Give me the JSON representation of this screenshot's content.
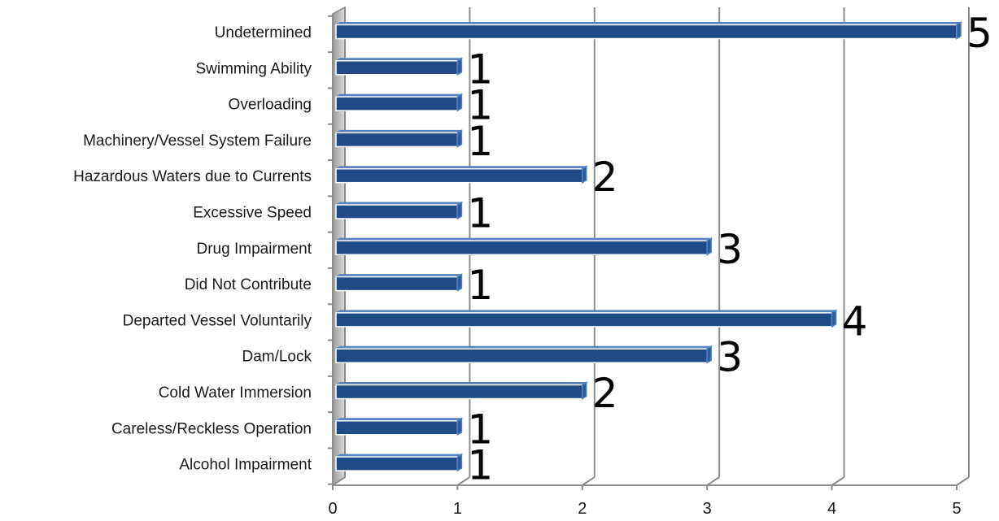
{
  "chart_data": {
    "type": "bar",
    "orientation": "horizontal",
    "categories": [
      "Undetermined",
      "Swimming Ability",
      "Overloading",
      "Machinery/Vessel System Failure",
      "Hazardous Waters due to Currents",
      "Excessive Speed",
      "Drug Impairment",
      "Did Not Contribute",
      "Departed Vessel Voluntarily",
      "Dam/Lock",
      "Cold Water Immersion",
      "Careless/Reckless Operation",
      "Alcohol Impairment"
    ],
    "values": [
      5,
      1,
      1,
      1,
      2,
      1,
      3,
      1,
      4,
      3,
      2,
      1,
      1
    ],
    "data_labels": [
      "5",
      "1",
      "1",
      "1",
      "2",
      "1",
      "3",
      "1",
      "4",
      "3",
      "2",
      "1",
      "1"
    ],
    "xlim": [
      0,
      5
    ],
    "x_ticks": [
      "0",
      "1",
      "2",
      "3",
      "4",
      "5"
    ],
    "title": "",
    "xlabel": "",
    "ylabel": "",
    "grid": "vertical",
    "legend": "none",
    "bar_color": "#1F4A87",
    "bar_edge_color": "#4F81BD",
    "grid_color": "#8C8C8C"
  }
}
